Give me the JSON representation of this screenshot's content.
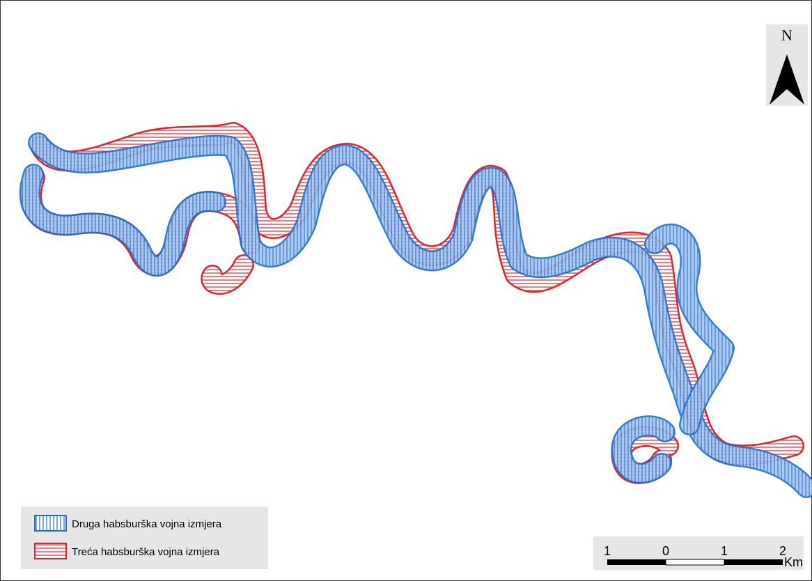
{
  "map": {
    "north_label": "N",
    "legend": [
      {
        "label": "Druga habsburška vojna izmjera",
        "color": "#1f6fd1",
        "hatch": "vertical"
      },
      {
        "label": "Treća habsburška vojna izmjera",
        "color": "#e3232b",
        "hatch": "horizontal"
      }
    ],
    "scale_bar": {
      "labels": [
        "1",
        "0",
        "1",
        "2"
      ],
      "unit": "Km"
    }
  }
}
